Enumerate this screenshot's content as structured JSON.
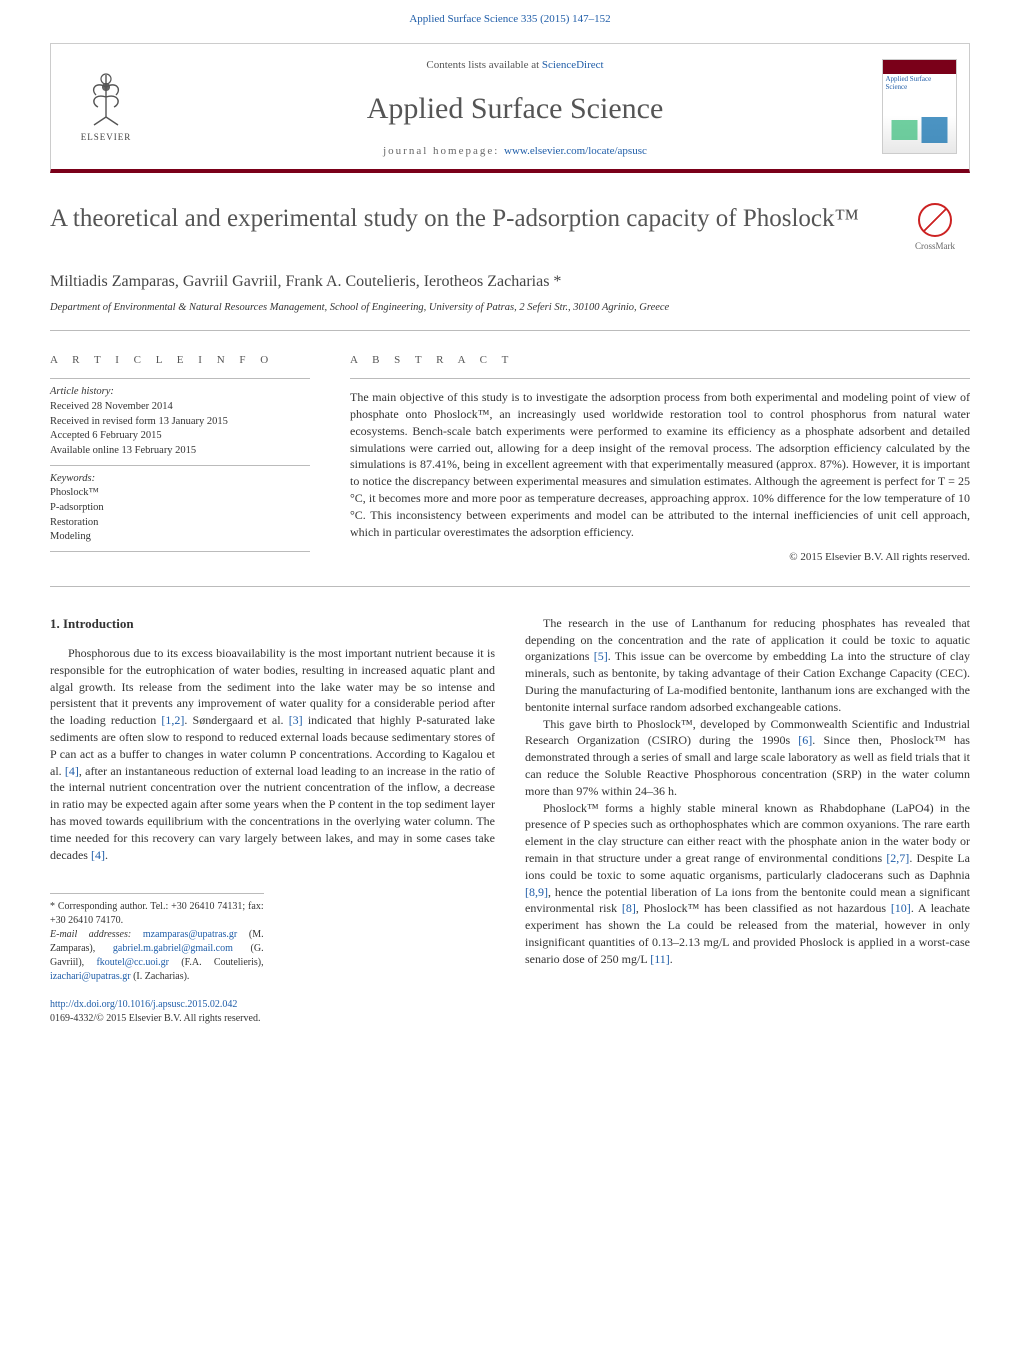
{
  "colors": {
    "link": "#1f5da8",
    "brand_bar": "#7a0019",
    "heading": "#555555",
    "text": "#333333",
    "rule": "#bbbbbb"
  },
  "top_citation": "Applied Surface Science 335 (2015) 147–152",
  "header": {
    "contents_prefix": "Contents lists available at ",
    "contents_link": "ScienceDirect",
    "journal_name": "Applied Surface Science",
    "homepage_prefix": "journal homepage: ",
    "homepage_url": "www.elsevier.com/locate/apsusc",
    "publisher_word": "ELSEVIER",
    "cover_title": "Applied Surface Science"
  },
  "crossmark_label": "CrossMark",
  "article": {
    "title": "A theoretical and experimental study on the P-adsorption capacity of Phoslock™",
    "authors": "Miltiadis Zamparas, Gavriil Gavriil, Frank A. Coutelieris, Ierotheos Zacharias *",
    "affiliation": "Department of Environmental & Natural Resources Management, School of Engineering, University of Patras, 2 Seferi Str., 30100 Agrinio, Greece"
  },
  "info": {
    "section_head": "A R T I C L E   I N F O",
    "history_label": "Article history:",
    "received": "Received 28 November 2014",
    "revised": "Received in revised form 13 January 2015",
    "accepted": "Accepted 6 February 2015",
    "online": "Available online 13 February 2015",
    "keywords_label": "Keywords:",
    "keywords": [
      "Phoslock™",
      "P-adsorption",
      "Restoration",
      "Modeling"
    ]
  },
  "abstract": {
    "section_head": "A B S T R A C T",
    "text": "The main objective of this study is to investigate the adsorption process from both experimental and modeling point of view of phosphate onto Phoslock™, an increasingly used worldwide restoration tool to control phosphorus from natural water ecosystems. Bench-scale batch experiments were performed to examine its efficiency as a phosphate adsorbent and detailed simulations were carried out, allowing for a deep insight of the removal process. The adsorption efficiency calculated by the simulations is 87.41%, being in excellent agreement with that experimentally measured (approx. 87%). However, it is important to notice the discrepancy between experimental measures and simulation estimates. Although the agreement is perfect for T = 25 °C, it becomes more and more poor as temperature decreases, approaching approx. 10% difference for the low temperature of 10 °C. This inconsistency between experiments and model can be attributed to the internal inefficiencies of unit cell approach, which in particular overestimates the adsorption efficiency.",
    "copyright": "© 2015 Elsevier B.V. All rights reserved."
  },
  "body": {
    "intro_heading": "1. Introduction",
    "left_paragraphs": [
      "Phosphorous due to its excess bioavailability is the most important nutrient because it is responsible for the eutrophication of water bodies, resulting in increased aquatic plant and algal growth. Its release from the sediment into the lake water may be so intense and persistent that it prevents any improvement of water quality for a considerable period after the loading reduction [1,2]. Søndergaard et al. [3] indicated that highly P-saturated lake sediments are often slow to respond to reduced external loads because sedimentary stores of P can act as a buffer to changes in water column P concentrations. According to Kagalou et al. [4], after an instantaneous reduction of external load leading to an increase in the ratio of the internal nutrient concentration over the nutrient concentration of the inflow, a decrease in ratio may be expected again after some years when the P content in the top sediment layer has moved towards equilibrium with the concentrations in the overlying water column. The time needed for this recovery can vary largely between lakes, and may in some cases take decades [4]."
    ],
    "right_paragraphs": [
      "The research in the use of Lanthanum for reducing phosphates has revealed that depending on the concentration and the rate of application it could be toxic to aquatic organizations [5]. This issue can be overcome by embedding La into the structure of clay minerals, such as bentonite, by taking advantage of their Cation Exchange Capacity (CEC). During the manufacturing of La-modified bentonite, lanthanum ions are exchanged with the bentonite internal surface random adsorbed exchangeable cations.",
      "This gave birth to Phoslock™, developed by Commonwealth Scientific and Industrial Research Organization (CSIRO) during the 1990s [6]. Since then, Phoslock™ has demonstrated through a series of small and large scale laboratory as well as field trials that it can reduce the Soluble Reactive Phosphorous concentration (SRP) in the water column more than 97% within 24–36 h.",
      "Phoslock™ forms a highly stable mineral known as Rhabdophane (LaPO4) in the presence of P species such as orthophosphates which are common oxyanions. The rare earth element in the clay structure can either react with the phosphate anion in the water body or remain in that structure under a great range of environmental conditions [2,7]. Despite La ions could be toxic to some aquatic organisms, particularly cladocerans such as Daphnia [8,9], hence the potential liberation of La ions from the bentonite could mean a significant environmental risk [8], Phoslock™ has been classified as not hazardous [10]. A leachate experiment has shown the La could be released from the material, however in only insignificant quantities of 0.13–2.13 mg/L and provided Phoslock is applied in a worst-case senario dose of 250 mg/L [11]."
    ]
  },
  "footnotes": {
    "corresponding": "* Corresponding author. Tel.: +30 26410 74131; fax: +30 26410 74170.",
    "email_label": "E-mail addresses: ",
    "emails": [
      {
        "addr": "mzamparas@upatras.gr",
        "who": " (M. Zamparas), "
      },
      {
        "addr": "gabriel.m.gabriel@gmail.com",
        "who": " (G. Gavriil), "
      },
      {
        "addr": "fkoutel@cc.uoi.gr",
        "who": " (F.A. Coutelieris), "
      },
      {
        "addr": "izachari@upatras.gr",
        "who": " (I. Zacharias)."
      }
    ]
  },
  "doi": {
    "url": "http://dx.doi.org/10.1016/j.apsusc.2015.02.042",
    "issn_line": "0169-4332/© 2015 Elsevier B.V. All rights reserved."
  }
}
